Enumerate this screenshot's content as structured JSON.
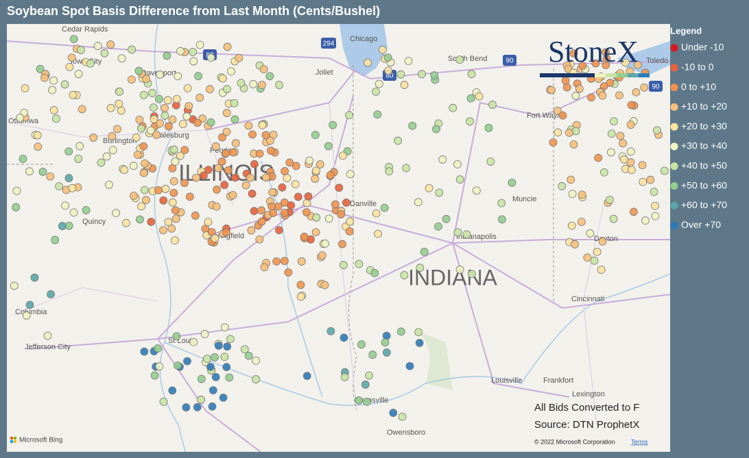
{
  "header": {
    "title": "Soybean Spot Basis Difference from Last Month (Cents/Bushel)"
  },
  "legend": {
    "title": "Legend",
    "items": [
      {
        "label": "Under -10",
        "color": "#d7191c"
      },
      {
        "label": "-10 to 0",
        "color": "#e8603c"
      },
      {
        "label": "0 to +10",
        "color": "#f0934f"
      },
      {
        "label": "+10 to +20",
        "color": "#f7c07a"
      },
      {
        "label": "+20 to +30",
        "color": "#fbe3a0"
      },
      {
        "label": "+30 to +40",
        "color": "#eef3c2"
      },
      {
        "label": "+40 to +50",
        "color": "#c9e4a5"
      },
      {
        "label": "+50 to +60",
        "color": "#93cd8f"
      },
      {
        "label": "+60 to +70",
        "color": "#5ba6a9"
      },
      {
        "label": "Over +70",
        "color": "#2c7bb9"
      }
    ]
  },
  "map": {
    "states": [
      "ILLINOIS",
      "INDIANA"
    ],
    "cities": [
      "Cedar Rapids",
      "Iowa City",
      "Davenport",
      "Ottumwa",
      "Burlington",
      "Galesburg",
      "Peoria",
      "Quincy",
      "Springfield",
      "Columbia",
      "Jefferson City",
      "St Louis",
      "Chicago",
      "Joliet",
      "South Bend",
      "Toledo",
      "Fort Wayne",
      "Muncie",
      "Danville",
      "Indianapolis",
      "Dayton",
      "Cincinnati",
      "Louisville",
      "Frankfort",
      "Lexington",
      "Evansville",
      "Owensboro"
    ],
    "highways": [
      "88",
      "294",
      "80",
      "90",
      "90"
    ],
    "logo": "StoneX",
    "notes": [
      "All Bids Converted to F",
      "Source: DTN ProphetX"
    ],
    "attribution": {
      "bing": "Microsoft Bing",
      "copyright": "© 2022 Microsoft Corporation",
      "terms": "Terms"
    }
  }
}
